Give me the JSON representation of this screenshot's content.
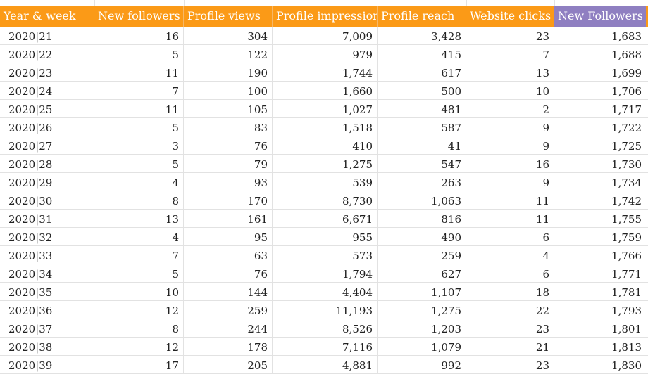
{
  "sheet": {
    "headers": [
      "Year & week",
      "New followers",
      "Profile views",
      "Profile impressions",
      "Profile reach",
      "Website clicks",
      "New Followers A"
    ],
    "rows": [
      [
        "2020|21",
        "16",
        "304",
        "7,009",
        "3,428",
        "23",
        "1,683"
      ],
      [
        "2020|22",
        "5",
        "122",
        "979",
        "415",
        "7",
        "1,688"
      ],
      [
        "2020|23",
        "11",
        "190",
        "1,744",
        "617",
        "13",
        "1,699"
      ],
      [
        "2020|24",
        "7",
        "100",
        "1,660",
        "500",
        "10",
        "1,706"
      ],
      [
        "2020|25",
        "11",
        "105",
        "1,027",
        "481",
        "2",
        "1,717"
      ],
      [
        "2020|26",
        "5",
        "83",
        "1,518",
        "587",
        "9",
        "1,722"
      ],
      [
        "2020|27",
        "3",
        "76",
        "410",
        "41",
        "9",
        "1,725"
      ],
      [
        "2020|28",
        "5",
        "79",
        "1,275",
        "547",
        "16",
        "1,730"
      ],
      [
        "2020|29",
        "4",
        "93",
        "539",
        "263",
        "9",
        "1,734"
      ],
      [
        "2020|30",
        "8",
        "170",
        "8,730",
        "1,063",
        "11",
        "1,742"
      ],
      [
        "2020|31",
        "13",
        "161",
        "6,671",
        "816",
        "11",
        "1,755"
      ],
      [
        "2020|32",
        "4",
        "95",
        "955",
        "490",
        "6",
        "1,759"
      ],
      [
        "2020|33",
        "7",
        "63",
        "573",
        "259",
        "4",
        "1,766"
      ],
      [
        "2020|34",
        "5",
        "76",
        "1,794",
        "627",
        "6",
        "1,771"
      ],
      [
        "2020|35",
        "10",
        "144",
        "4,404",
        "1,107",
        "18",
        "1,781"
      ],
      [
        "2020|36",
        "12",
        "259",
        "11,193",
        "1,275",
        "22",
        "1,793"
      ],
      [
        "2020|37",
        "8",
        "244",
        "8,526",
        "1,203",
        "23",
        "1,801"
      ],
      [
        "2020|38",
        "12",
        "178",
        "7,116",
        "1,079",
        "21",
        "1,813"
      ],
      [
        "2020|39",
        "17",
        "205",
        "4,881",
        "992",
        "23",
        "1,830"
      ]
    ]
  },
  "colors": {
    "header_orange": "#fb9a17",
    "header_purple": "#8f7fc1",
    "gridline": "#e2e2e2"
  }
}
